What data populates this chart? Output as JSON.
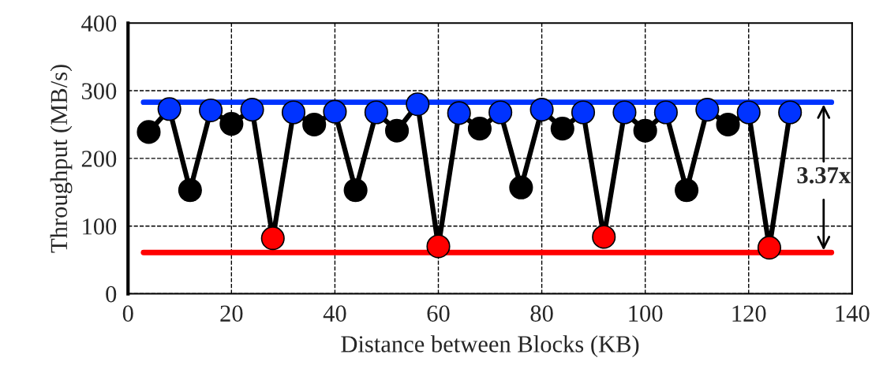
{
  "chart_data": {
    "type": "line",
    "xlabel": "Distance between Blocks (KB)",
    "ylabel": "Throughput (MB/s)",
    "xlim": [
      0,
      140
    ],
    "xticks": [
      0,
      20,
      40,
      60,
      80,
      100,
      120,
      140
    ],
    "ylim": [
      0,
      400
    ],
    "yticks": [
      0,
      100,
      200,
      300,
      400
    ],
    "grid": true,
    "series": [
      {
        "type": "line",
        "color": "#0033ff",
        "x": [
          3,
          136
        ],
        "values": [
          283,
          283
        ],
        "marker": "none",
        "line_style": "solid"
      },
      {
        "type": "line",
        "color": "#ff0000",
        "x": [
          3,
          136
        ],
        "values": [
          61,
          61
        ],
        "marker": "none",
        "line_style": "solid"
      },
      {
        "color": "#000000",
        "marker": "circle",
        "line_style": "solid",
        "x": [
          4,
          8,
          12,
          16,
          20,
          24,
          28,
          32,
          36,
          40,
          44,
          48,
          52,
          56,
          60,
          64,
          68,
          72,
          76,
          80,
          84,
          88,
          92,
          96,
          100,
          104,
          108,
          112,
          116,
          120,
          124,
          128
        ],
        "values": [
          239,
          273,
          153,
          271,
          251,
          272,
          82,
          268,
          250,
          269,
          153,
          268,
          241,
          280,
          70,
          267,
          244,
          268,
          157,
          272,
          244,
          268,
          84,
          268,
          241,
          268,
          153,
          272,
          250,
          268,
          68,
          268
        ],
        "colors": [
          "#000000",
          "#0033ff",
          "#000000",
          "#0033ff",
          "#000000",
          "#0033ff",
          "#ff0000",
          "#0033ff",
          "#000000",
          "#0033ff",
          "#000000",
          "#0033ff",
          "#000000",
          "#0033ff",
          "#ff0000",
          "#0033ff",
          "#000000",
          "#0033ff",
          "#000000",
          "#0033ff",
          "#000000",
          "#0033ff",
          "#ff0000",
          "#0033ff",
          "#000000",
          "#0033ff",
          "#000000",
          "#0033ff",
          "#000000",
          "#0033ff",
          "#ff0000",
          "#0033ff"
        ]
      }
    ],
    "annotations": [
      {
        "text": "3.37x",
        "x": 134.5,
        "y": 283
      }
    ]
  }
}
